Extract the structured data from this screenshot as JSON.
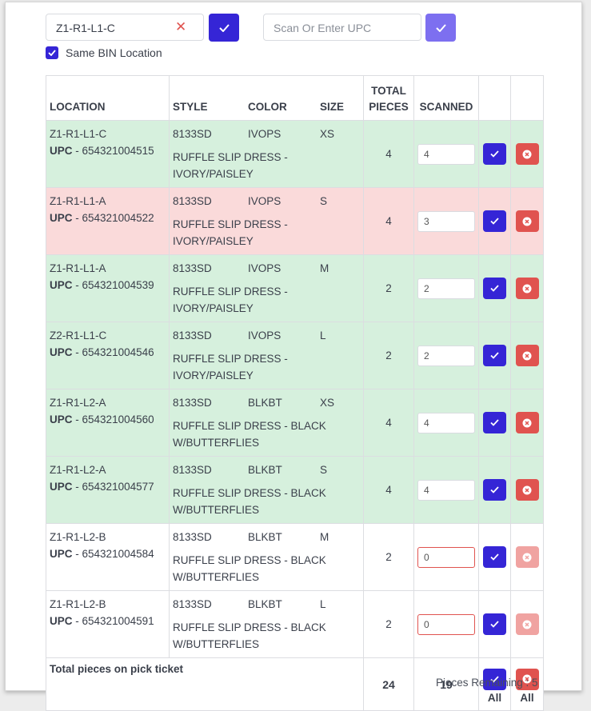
{
  "bin_location": {
    "value": "Z1-R1-L1-C",
    "clear_symbol": "✕"
  },
  "upc": {
    "placeholder": "Scan Or Enter UPC"
  },
  "same_bin": {
    "label": "Same BIN Location",
    "checked": true
  },
  "table": {
    "headers": {
      "location": "LOCATION",
      "style": "STYLE",
      "color": "COLOR",
      "size": "SIZE",
      "total_line1": "TOTAL",
      "total_line2": "PIECES",
      "scanned": "SCANNED"
    },
    "upc_prefix": "UPC",
    "rows": [
      {
        "location": "Z1-R1-L1-C",
        "upc": "- 654321004515",
        "style": "8133SD",
        "color": "IVOPS",
        "size": "XS",
        "desc1": "RUFFLE SLIP DRESS -",
        "desc2": "IVORY/PAISLEY",
        "total": "4",
        "scanned": "4",
        "status": "green"
      },
      {
        "location": "Z1-R1-L1-A",
        "upc": "- 654321004522",
        "style": "8133SD",
        "color": "IVOPS",
        "size": "S",
        "desc1": "RUFFLE SLIP DRESS -",
        "desc2": "IVORY/PAISLEY",
        "total": "4",
        "scanned": "3",
        "status": "red"
      },
      {
        "location": "Z1-R1-L1-A",
        "upc": "- 654321004539",
        "style": "8133SD",
        "color": "IVOPS",
        "size": "M",
        "desc1": "RUFFLE SLIP DRESS -",
        "desc2": "IVORY/PAISLEY",
        "total": "2",
        "scanned": "2",
        "status": "green"
      },
      {
        "location": "Z2-R1-L1-C",
        "upc": "- 654321004546",
        "style": "8133SD",
        "color": "IVOPS",
        "size": "L",
        "desc1": "RUFFLE SLIP DRESS -",
        "desc2": "IVORY/PAISLEY",
        "total": "2",
        "scanned": "2",
        "status": "green"
      },
      {
        "location": "Z1-R1-L2-A",
        "upc": "- 654321004560",
        "style": "8133SD",
        "color": "BLKBT",
        "size": "XS",
        "desc1": "RUFFLE SLIP DRESS - BLACK",
        "desc2": "W/BUTTERFLIES",
        "total": "4",
        "scanned": "4",
        "status": "green"
      },
      {
        "location": "Z1-R1-L2-A",
        "upc": "- 654321004577",
        "style": "8133SD",
        "color": "BLKBT",
        "size": "S",
        "desc1": "RUFFLE SLIP DRESS - BLACK",
        "desc2": "W/BUTTERFLIES",
        "total": "4",
        "scanned": "4",
        "status": "green"
      },
      {
        "location": "Z1-R1-L2-B",
        "upc": "- 654321004584",
        "style": "8133SD",
        "color": "BLKBT",
        "size": "M",
        "desc1": "RUFFLE SLIP DRESS - BLACK",
        "desc2": "W/BUTTERFLIES",
        "total": "2",
        "scanned": "0",
        "status": "white"
      },
      {
        "location": "Z1-R1-L2-B",
        "upc": "- 654321004591",
        "style": "8133SD",
        "color": "BLKBT",
        "size": "L",
        "desc1": "RUFFLE SLIP DRESS - BLACK",
        "desc2": "W/BUTTERFLIES",
        "total": "2",
        "scanned": "0",
        "status": "white"
      }
    ],
    "footer": {
      "label": "Total pieces on pick ticket",
      "total": "24",
      "scanned": "19",
      "all_label": "All"
    }
  },
  "pieces_remaining": "Pieces Remaining : 5",
  "colors": {
    "primary": "#3525d6",
    "danger": "#e0534f",
    "row_ok": "#d6f0dd",
    "row_partial": "#fadada"
  }
}
